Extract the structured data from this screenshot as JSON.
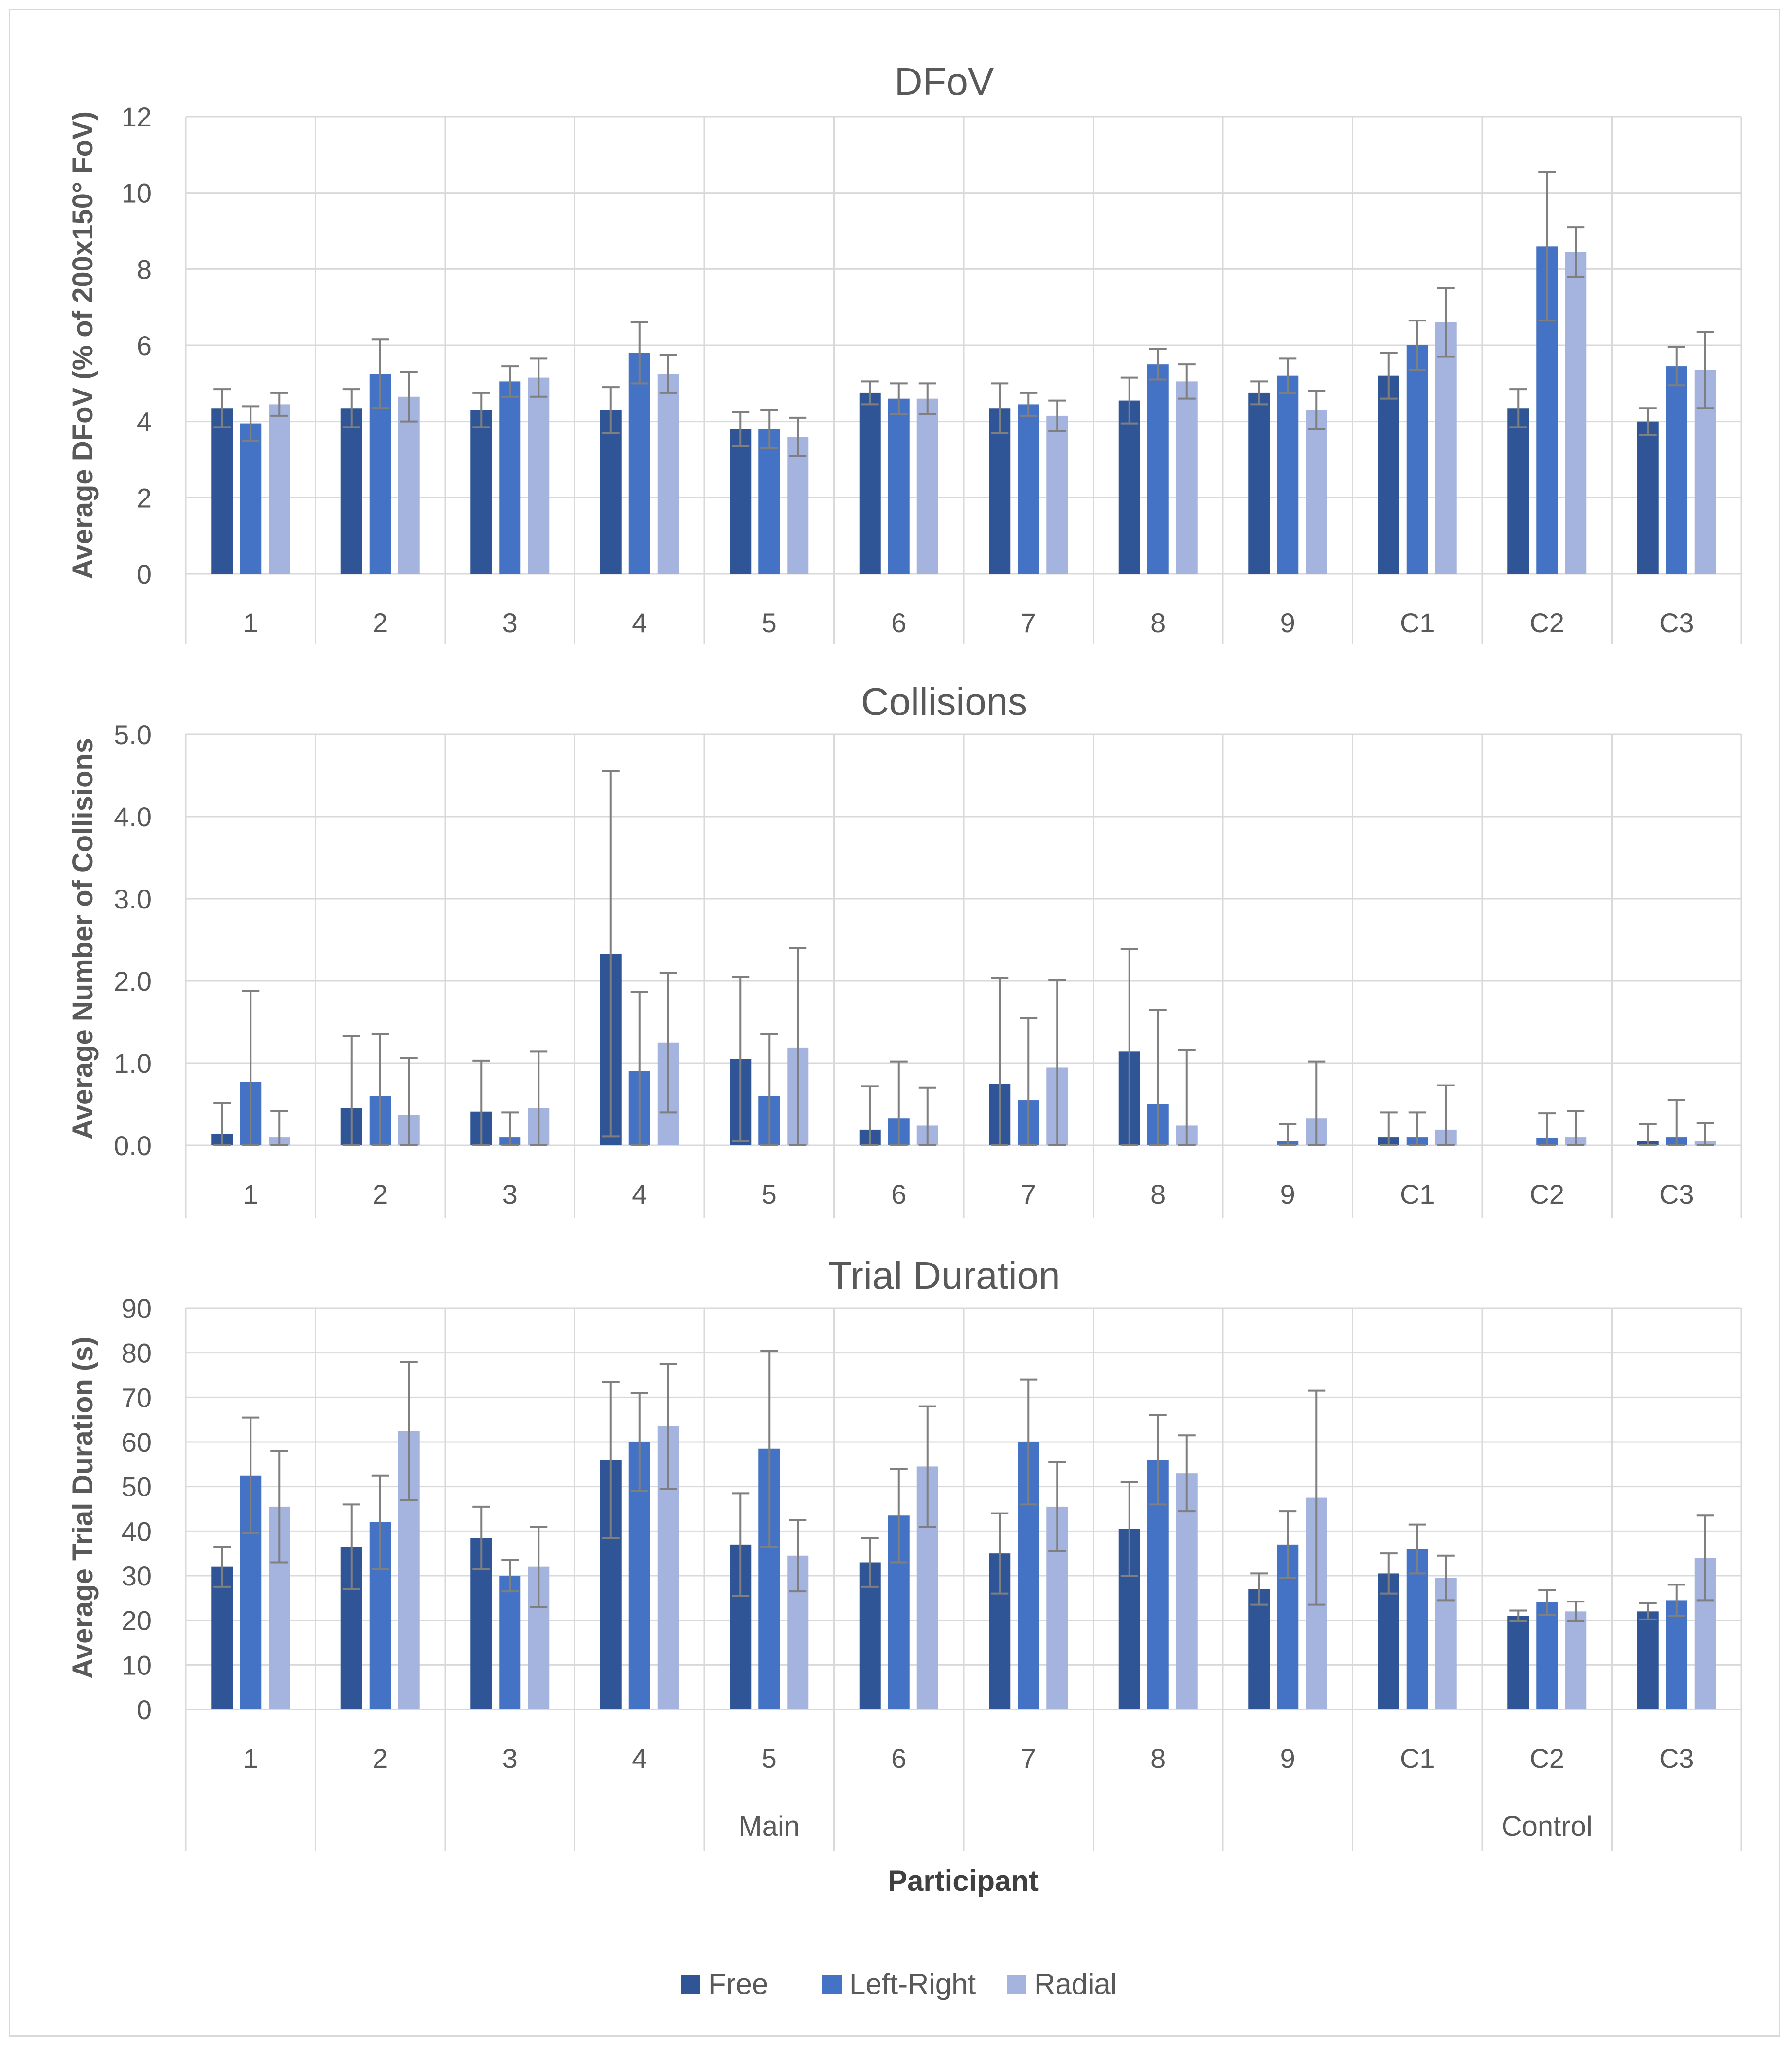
{
  "chart_data": [
    {
      "type": "bar",
      "title": "DFoV",
      "ylabel": "Average DFoV (% of 200x150° FoV)",
      "ylim": [
        0,
        12
      ],
      "yticks": [
        "0",
        "2",
        "4",
        "6",
        "8",
        "10",
        "12"
      ],
      "categories": [
        "1",
        "2",
        "3",
        "4",
        "5",
        "6",
        "7",
        "8",
        "9",
        "C1",
        "C2",
        "C3"
      ],
      "series": [
        {
          "name": "Free",
          "values": [
            4.35,
            4.35,
            4.3,
            4.3,
            3.8,
            4.75,
            4.35,
            4.55,
            4.75,
            5.2,
            4.35,
            4.0
          ],
          "errors": [
            0.5,
            0.5,
            0.45,
            0.6,
            0.45,
            0.3,
            0.65,
            0.6,
            0.3,
            0.6,
            0.5,
            0.35
          ]
        },
        {
          "name": "Left-Right",
          "values": [
            3.95,
            5.25,
            5.05,
            5.8,
            3.8,
            4.6,
            4.45,
            5.5,
            5.2,
            6.0,
            8.6,
            5.45
          ],
          "errors": [
            0.45,
            0.9,
            0.4,
            0.8,
            0.5,
            0.4,
            0.3,
            0.4,
            0.45,
            0.65,
            1.95,
            0.5
          ]
        },
        {
          "name": "Radial",
          "values": [
            4.45,
            4.65,
            5.15,
            5.25,
            3.6,
            4.6,
            4.15,
            5.05,
            4.3,
            6.6,
            8.45,
            5.35
          ],
          "errors": [
            0.3,
            0.65,
            0.5,
            0.5,
            0.5,
            0.4,
            0.4,
            0.45,
            0.5,
            0.9,
            0.65,
            1.0
          ]
        }
      ]
    },
    {
      "type": "bar",
      "title": "Collisions",
      "ylabel": "Average Number of Collisions",
      "ylim": [
        0,
        5
      ],
      "yticks": [
        "0.0",
        "1.0",
        "2.0",
        "3.0",
        "4.0",
        "5.0"
      ],
      "categories": [
        "1",
        "2",
        "3",
        "4",
        "5",
        "6",
        "7",
        "8",
        "9",
        "C1",
        "C2",
        "C3"
      ],
      "series": [
        {
          "name": "Free",
          "values": [
            0.14,
            0.45,
            0.41,
            2.33,
            1.05,
            0.19,
            0.75,
            1.14,
            0.0,
            0.1,
            0.0,
            0.05
          ],
          "errors": [
            0.38,
            0.88,
            0.62,
            2.22,
            1.0,
            0.53,
            1.29,
            1.25,
            0.0,
            0.3,
            0.0,
            0.21
          ]
        },
        {
          "name": "Left-Right",
          "values": [
            0.77,
            0.6,
            0.1,
            0.9,
            0.6,
            0.33,
            0.55,
            0.5,
            0.05,
            0.1,
            0.09,
            0.1
          ],
          "errors": [
            1.11,
            0.75,
            0.3,
            0.97,
            0.75,
            0.69,
            1.0,
            1.15,
            0.21,
            0.3,
            0.3,
            0.45
          ]
        },
        {
          "name": "Radial",
          "values": [
            0.1,
            0.37,
            0.45,
            1.25,
            1.19,
            0.24,
            0.95,
            0.24,
            0.33,
            0.19,
            0.1,
            0.05
          ],
          "errors": [
            0.32,
            0.69,
            0.69,
            0.85,
            1.21,
            0.46,
            1.06,
            0.92,
            0.69,
            0.54,
            0.32,
            0.22
          ]
        }
      ]
    },
    {
      "type": "bar",
      "title": "Trial Duration",
      "ylabel": "Average Trial Duration (s)",
      "ylim": [
        0,
        90
      ],
      "yticks": [
        "0",
        "10",
        "20",
        "30",
        "40",
        "50",
        "60",
        "70",
        "80",
        "90"
      ],
      "categories": [
        "1",
        "2",
        "3",
        "4",
        "5",
        "6",
        "7",
        "8",
        "9",
        "C1",
        "C2",
        "C3"
      ],
      "groups": [
        {
          "name": "Main",
          "count": 9
        },
        {
          "name": "Control",
          "count": 3
        }
      ],
      "xlabel": "Participant",
      "series": [
        {
          "name": "Free",
          "values": [
            32,
            36.5,
            38.5,
            56,
            37,
            33,
            35,
            40.5,
            27,
            30.5,
            21,
            22
          ],
          "errors": [
            4.5,
            9.5,
            7,
            17.5,
            11.5,
            5.5,
            9,
            10.5,
            3.5,
            4.5,
            1.2,
            1.8
          ]
        },
        {
          "name": "Left-Right",
          "values": [
            52.5,
            42,
            30,
            60,
            58.5,
            43.5,
            60,
            56,
            37,
            36,
            24,
            24.5
          ],
          "errors": [
            13,
            10.5,
            3.5,
            11,
            22,
            10.5,
            14,
            10,
            7.5,
            5.5,
            2.8,
            3.5
          ]
        },
        {
          "name": "Radial",
          "values": [
            45.5,
            62.5,
            32,
            63.5,
            34.5,
            54.5,
            45.5,
            53,
            47.5,
            29.5,
            22,
            34
          ],
          "errors": [
            12.5,
            15.5,
            9,
            14,
            8,
            13.5,
            10,
            8.5,
            24,
            5,
            2.2,
            9.5
          ]
        }
      ]
    }
  ],
  "legend": [
    {
      "name": "Free",
      "color": "#2f5597"
    },
    {
      "name": "Left-Right",
      "color": "#4472c4"
    },
    {
      "name": "Radial",
      "color": "#a5b4de"
    }
  ],
  "colors": {
    "grid": "#d9d9d9",
    "error_bar": "#7f7f7f",
    "text": "#595959"
  }
}
